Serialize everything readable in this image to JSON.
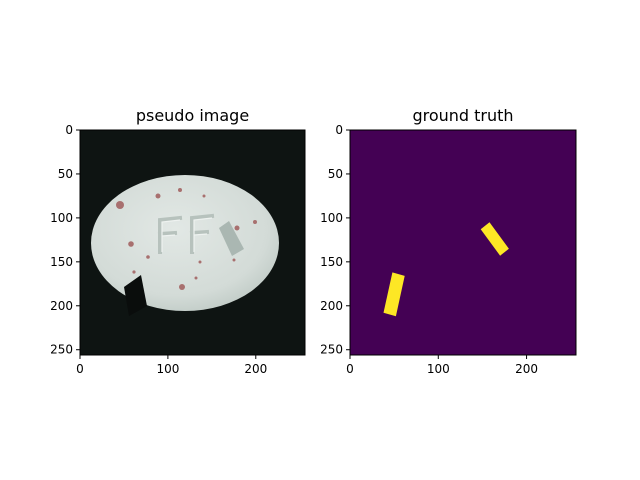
{
  "chart_data": [
    {
      "type": "image",
      "title": "pseudo image",
      "image_size": [
        256,
        256
      ],
      "xticks": [
        0,
        100,
        200
      ],
      "yticks": [
        0,
        50,
        100,
        150,
        200,
        250
      ],
      "xlim": [
        0,
        256
      ],
      "ylim": [
        256,
        0
      ],
      "content": {
        "background": "#0e1412",
        "pill": {
          "shape": "ellipse",
          "center": [
            119,
            129
          ],
          "radii": [
            106,
            76
          ],
          "color": "#d4dcd8"
        },
        "embossed_text": "FF",
        "red_specks_color": "#a8706f",
        "pasted_patches": [
          {
            "kind": "dark",
            "color": "#0a0d0c",
            "corners": [
              [
                50,
                178
              ],
              [
                68,
                166
              ],
              [
                75,
                200
              ],
              [
                57,
                210
              ]
            ]
          },
          {
            "kind": "light",
            "color": "#aab7b2",
            "corners": [
              [
                158,
                112
              ],
              [
                170,
                104
              ],
              [
                186,
                135
              ],
              [
                174,
                143
              ]
            ]
          }
        ]
      }
    },
    {
      "type": "heatmap",
      "title": "ground truth",
      "image_size": [
        256,
        256
      ],
      "xticks": [
        0,
        100,
        200
      ],
      "yticks": [
        0,
        50,
        100,
        150,
        200,
        250
      ],
      "xlim": [
        0,
        256
      ],
      "ylim": [
        256,
        0
      ],
      "colormap": "viridis",
      "background_color": "#440154",
      "mask_color": "#fde725",
      "mask_regions": [
        {
          "corners": [
            [
              52,
              212
            ],
            [
              38,
              208
            ],
            [
              48,
              162
            ],
            [
              62,
              166
            ]
          ]
        },
        {
          "corners": [
            [
              148,
              113
            ],
            [
              158,
              105
            ],
            [
              180,
              135
            ],
            [
              170,
              143
            ]
          ]
        }
      ]
    }
  ]
}
